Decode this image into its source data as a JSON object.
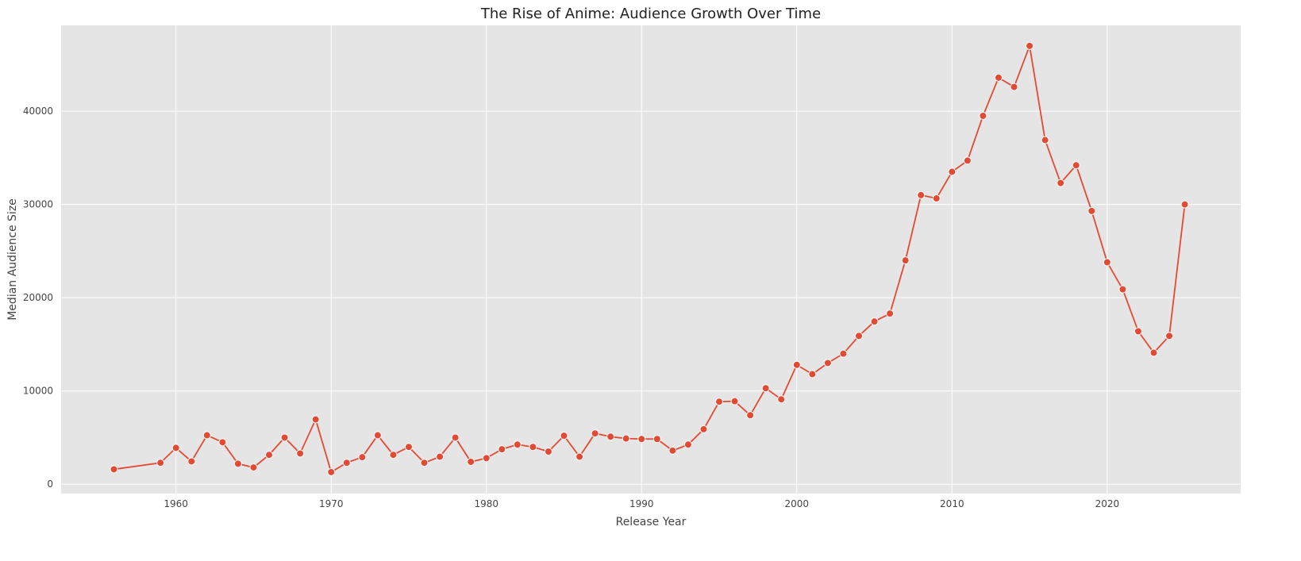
{
  "chart_data": {
    "type": "line",
    "title": "The Rise of Anime: Audience Growth Over Time",
    "xlabel": "Release Year",
    "ylabel": "Median Audience Size",
    "xlim": [
      1952.6,
      2028.6
    ],
    "ylim": [
      -1000,
      49200
    ],
    "xticks": [
      1960,
      1970,
      1980,
      1990,
      2000,
      2010,
      2020
    ],
    "yticks": [
      0,
      10000,
      20000,
      30000,
      40000
    ],
    "grid": true,
    "colors": {
      "line": "#e24a33",
      "background": "#e5e5e5",
      "grid": "#ffffff"
    },
    "x": [
      1956,
      1959,
      1960,
      1961,
      1962,
      1963,
      1964,
      1965,
      1966,
      1967,
      1968,
      1969,
      1970,
      1971,
      1972,
      1973,
      1974,
      1975,
      1976,
      1977,
      1978,
      1979,
      1980,
      1981,
      1982,
      1983,
      1984,
      1985,
      1986,
      1987,
      1988,
      1989,
      1990,
      1991,
      1992,
      1993,
      1994,
      1995,
      1996,
      1997,
      1998,
      1999,
      2000,
      2001,
      2002,
      2003,
      2004,
      2005,
      2006,
      2007,
      2008,
      2009,
      2010,
      2011,
      2012,
      2013,
      2014,
      2015,
      2016,
      2017,
      2018,
      2019,
      2020,
      2021,
      2022,
      2023,
      2024,
      2025
    ],
    "y": [
      1600,
      2300,
      3900,
      2450,
      5250,
      4500,
      2200,
      1800,
      3150,
      5000,
      3300,
      6950,
      1300,
      2300,
      2900,
      5250,
      3150,
      4000,
      2300,
      2950,
      5000,
      2400,
      2800,
      3750,
      4250,
      4000,
      3500,
      5200,
      2950,
      5450,
      5100,
      4900,
      4850,
      4850,
      3600,
      4250,
      5900,
      8850,
      8900,
      7400,
      10300,
      9100,
      12800,
      11800,
      13000,
      14000,
      15900,
      17450,
      18300,
      24000,
      31000,
      30650,
      33500,
      34700,
      39500,
      43600,
      42600,
      47000,
      36900,
      32300,
      34200,
      29300,
      23800,
      20900,
      16400,
      14100,
      15900,
      30000
    ]
  }
}
